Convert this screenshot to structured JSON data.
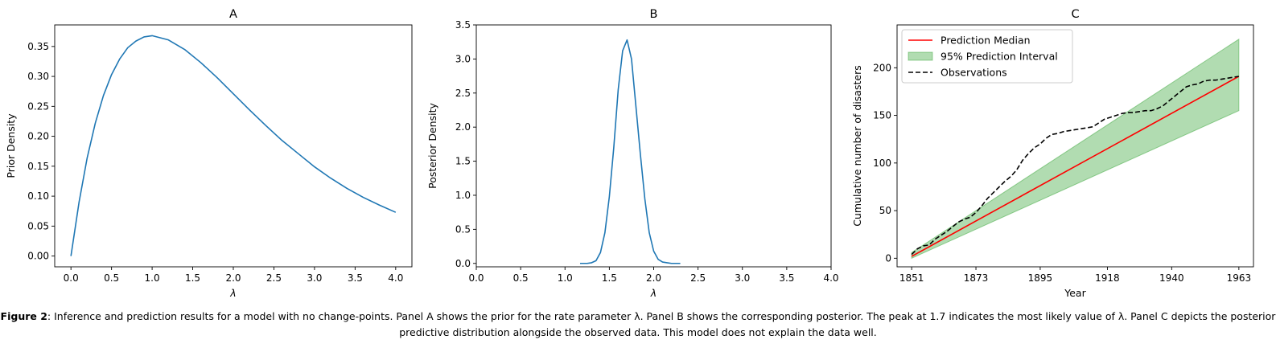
{
  "chart_data": [
    {
      "panel": "A",
      "type": "line",
      "title": "A",
      "xlabel": "λ",
      "ylabel": "Prior Density",
      "xlim": [
        -0.2,
        4.2
      ],
      "ylim": [
        -0.018,
        0.386
      ],
      "xticks": [
        "0.0",
        "0.5",
        "1.0",
        "1.5",
        "2.0",
        "2.5",
        "3.0",
        "3.5",
        "4.0"
      ],
      "xtick_values": [
        0,
        0.5,
        1,
        1.5,
        2,
        2.5,
        3,
        3.5,
        4
      ],
      "yticks": [
        "0.00",
        "0.05",
        "0.10",
        "0.15",
        "0.20",
        "0.25",
        "0.30",
        "0.35"
      ],
      "ytick_values": [
        0,
        0.05,
        0.1,
        0.15,
        0.2,
        0.25,
        0.3,
        0.35
      ],
      "series": [
        {
          "color": "#1f77b4",
          "x": [
            0,
            0.1,
            0.2,
            0.3,
            0.4,
            0.5,
            0.6,
            0.7,
            0.8,
            0.9,
            1.0,
            1.2,
            1.4,
            1.6,
            1.8,
            2.0,
            2.2,
            2.4,
            2.6,
            2.8,
            3.0,
            3.2,
            3.4,
            3.6,
            3.8,
            4.0
          ],
          "y": [
            0,
            0.09,
            0.164,
            0.222,
            0.268,
            0.303,
            0.329,
            0.348,
            0.359,
            0.366,
            0.368,
            0.361,
            0.345,
            0.323,
            0.298,
            0.271,
            0.244,
            0.218,
            0.193,
            0.171,
            0.149,
            0.13,
            0.113,
            0.098,
            0.085,
            0.073
          ]
        }
      ]
    },
    {
      "panel": "B",
      "type": "line",
      "title": "B",
      "xlabel": "λ",
      "ylabel": "Posterior Density",
      "xlim": [
        0,
        4
      ],
      "ylim": [
        -0.05,
        3.5
      ],
      "xticks": [
        "0.0",
        "0.5",
        "1.0",
        "1.5",
        "2.0",
        "2.5",
        "3.0",
        "3.5",
        "4.0"
      ],
      "xtick_values": [
        0,
        0.5,
        1,
        1.5,
        2,
        2.5,
        3,
        3.5,
        4
      ],
      "yticks": [
        "0.0",
        "0.5",
        "1.0",
        "1.5",
        "2.0",
        "2.5",
        "3.0",
        "3.5"
      ],
      "ytick_values": [
        0,
        0.5,
        1,
        1.5,
        2,
        2.5,
        3,
        3.5
      ],
      "series": [
        {
          "color": "#1f77b4",
          "x": [
            1.17,
            1.25,
            1.3,
            1.35,
            1.4,
            1.45,
            1.5,
            1.55,
            1.6,
            1.65,
            1.7,
            1.75,
            1.8,
            1.85,
            1.9,
            1.95,
            2.0,
            2.05,
            2.1,
            2.15,
            2.2,
            2.3
          ],
          "y": [
            0.0,
            0.0,
            0.01,
            0.04,
            0.16,
            0.45,
            0.98,
            1.7,
            2.55,
            3.12,
            3.28,
            3.0,
            2.3,
            1.6,
            0.95,
            0.45,
            0.18,
            0.06,
            0.02,
            0.01,
            0.0,
            0.0
          ]
        }
      ]
    },
    {
      "panel": "C",
      "type": "line",
      "title": "C",
      "xlabel": "Year",
      "ylabel": "Cumulative number of disasters",
      "xlim": [
        1846,
        1968
      ],
      "ylim": [
        -9,
        245
      ],
      "xticks": [
        "1851",
        "1873",
        "1895",
        "1918",
        "1940",
        "1963"
      ],
      "xtick_values": [
        1851,
        1873,
        1895,
        1918,
        1940,
        1963
      ],
      "yticks": [
        "0",
        "50",
        "100",
        "150",
        "200"
      ],
      "ytick_values": [
        0,
        50,
        100,
        150,
        200
      ],
      "legend": {
        "position": "top-left",
        "entries": [
          "Prediction Median",
          "95% Prediction Interval",
          "Observations"
        ]
      },
      "band": {
        "name": "95% Prediction Interval",
        "color": "#2ca02c",
        "x": [
          1851,
          1963
        ],
        "lower": [
          0,
          155
        ],
        "upper": [
          6,
          230
        ]
      },
      "series": [
        {
          "name": "Prediction Median",
          "color": "#ff0000",
          "style": "solid",
          "x": [
            1851,
            1963
          ],
          "y": [
            2,
            191
          ]
        },
        {
          "name": "Observations",
          "color": "#000000",
          "style": "dashed",
          "x": [
            1851,
            1853,
            1855,
            1857,
            1859,
            1861,
            1863,
            1865,
            1867,
            1869,
            1871,
            1873,
            1875,
            1877,
            1879,
            1881,
            1883,
            1885,
            1887,
            1889,
            1891,
            1893,
            1895,
            1897,
            1899,
            1901,
            1903,
            1905,
            1907,
            1909,
            1911,
            1913,
            1915,
            1917,
            1919,
            1921,
            1923,
            1925,
            1927,
            1929,
            1931,
            1933,
            1935,
            1937,
            1939,
            1941,
            1943,
            1945,
            1947,
            1949,
            1951,
            1953,
            1955,
            1957,
            1959,
            1961,
            1963
          ],
          "y": [
            4,
            10,
            13,
            14,
            20,
            24,
            28,
            33,
            38,
            41,
            43,
            48,
            55,
            63,
            69,
            75,
            81,
            86,
            93,
            103,
            110,
            116,
            120,
            126,
            130,
            131,
            133,
            134,
            135,
            136,
            137,
            138,
            142,
            146,
            148,
            150,
            152,
            153,
            153,
            154,
            155,
            155,
            157,
            160,
            165,
            170,
            175,
            180,
            182,
            183,
            186,
            187,
            187,
            188,
            189,
            190,
            191
          ]
        }
      ]
    }
  ],
  "caption": {
    "label": "Figure 2",
    "text": ": Inference and prediction results for a model with no change-points. Panel A shows the prior for the rate parameter λ. Panel B shows the corresponding posterior. The peak at 1.7 indicates the most likely value of λ. Panel C depicts the posterior predictive distribution alongside the observed data. This model does not explain the data well."
  }
}
